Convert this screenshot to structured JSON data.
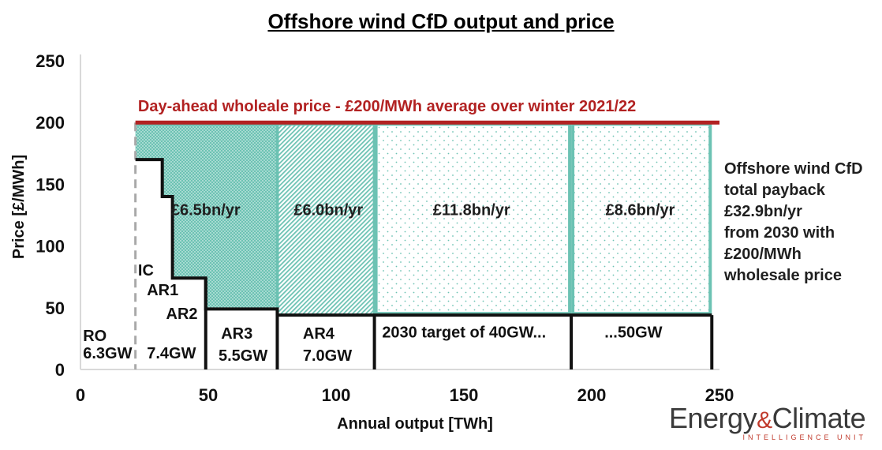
{
  "title": "Offshore wind CfD output and price",
  "side_note": [
    "Offshore wind CfD",
    "total payback",
    "£32.9bn/yr",
    "from 2030 with",
    "£200/MWh",
    "wholesale price"
  ],
  "logo": {
    "main_left": "Energy",
    "amp": "&",
    "main_right": "Climate",
    "sub": "INTELLIGENCE UNIT"
  },
  "colors": {
    "teal": "#6cc2b3",
    "teal_light": "#bfe6dd",
    "red": "#b22222",
    "black": "#111111",
    "grey_dash": "#a9a9a9"
  },
  "chart_data": {
    "type": "area",
    "title": "Offshore wind CfD output and price",
    "xlabel": "Annual output [TWh]",
    "ylabel": "Price [£/MWh]",
    "xlim": [
      0,
      250
    ],
    "ylim": [
      0,
      250
    ],
    "x_ticks": [
      0,
      50,
      100,
      150,
      200,
      250
    ],
    "y_ticks": [
      0,
      50,
      100,
      150,
      200,
      250
    ],
    "wholesale_price": {
      "value": 200,
      "label": "Day-ahead wholeale price - £200/MWh average over winter 2021/22"
    },
    "strike_price_steps": [
      {
        "x": [
          21.5,
          32
        ],
        "price": 170
      },
      {
        "x": [
          32,
          36
        ],
        "price": 140
      },
      {
        "x": [
          36,
          49
        ],
        "price": 74
      },
      {
        "x": [
          49,
          77
        ],
        "price": 49
      },
      {
        "x": [
          77,
          115
        ],
        "price": 44
      },
      {
        "x": [
          115,
          192
        ],
        "price": 44
      },
      {
        "x": [
          192,
          247
        ],
        "price": 44
      }
    ],
    "ro_boundary_x": 21.5,
    "payback_blocks": [
      {
        "label": "£6.5bn/yr",
        "x": [
          21.5,
          77
        ],
        "label_x": 49,
        "label_y": 125,
        "pattern": "dense"
      },
      {
        "label": "£6.0bn/yr",
        "x": [
          77,
          115
        ],
        "label_x": 97,
        "label_y": 125,
        "pattern": "diagonal"
      },
      {
        "label": "£11.8bn/yr",
        "x": [
          115,
          192
        ],
        "label_x": 153,
        "label_y": 125,
        "pattern": "dots"
      },
      {
        "label": "£8.6bn/yr",
        "x": [
          192,
          247
        ],
        "label_x": 219,
        "label_y": 125,
        "pattern": "dots"
      }
    ],
    "segment_labels": [
      {
        "text": "RO",
        "x": 1,
        "y": 23
      },
      {
        "text": "6.3GW",
        "x": 1,
        "y": 9
      },
      {
        "text": "IC",
        "x": 22.5,
        "y": 76
      },
      {
        "text": "AR1",
        "x": 26,
        "y": 60
      },
      {
        "text": "AR2",
        "x": 33.5,
        "y": 41
      },
      {
        "text": "7.4GW",
        "x": 26,
        "y": 9
      },
      {
        "text": "AR3",
        "x": 55,
        "y": 25
      },
      {
        "text": "5.5GW",
        "x": 54,
        "y": 7
      },
      {
        "text": "AR4",
        "x": 87,
        "y": 25
      },
      {
        "text": "7.0GW",
        "x": 87,
        "y": 7
      },
      {
        "text": "2030 target of 40GW...",
        "x": 118,
        "y": 26
      },
      {
        "text": "...50GW",
        "x": 205,
        "y": 26
      }
    ]
  }
}
